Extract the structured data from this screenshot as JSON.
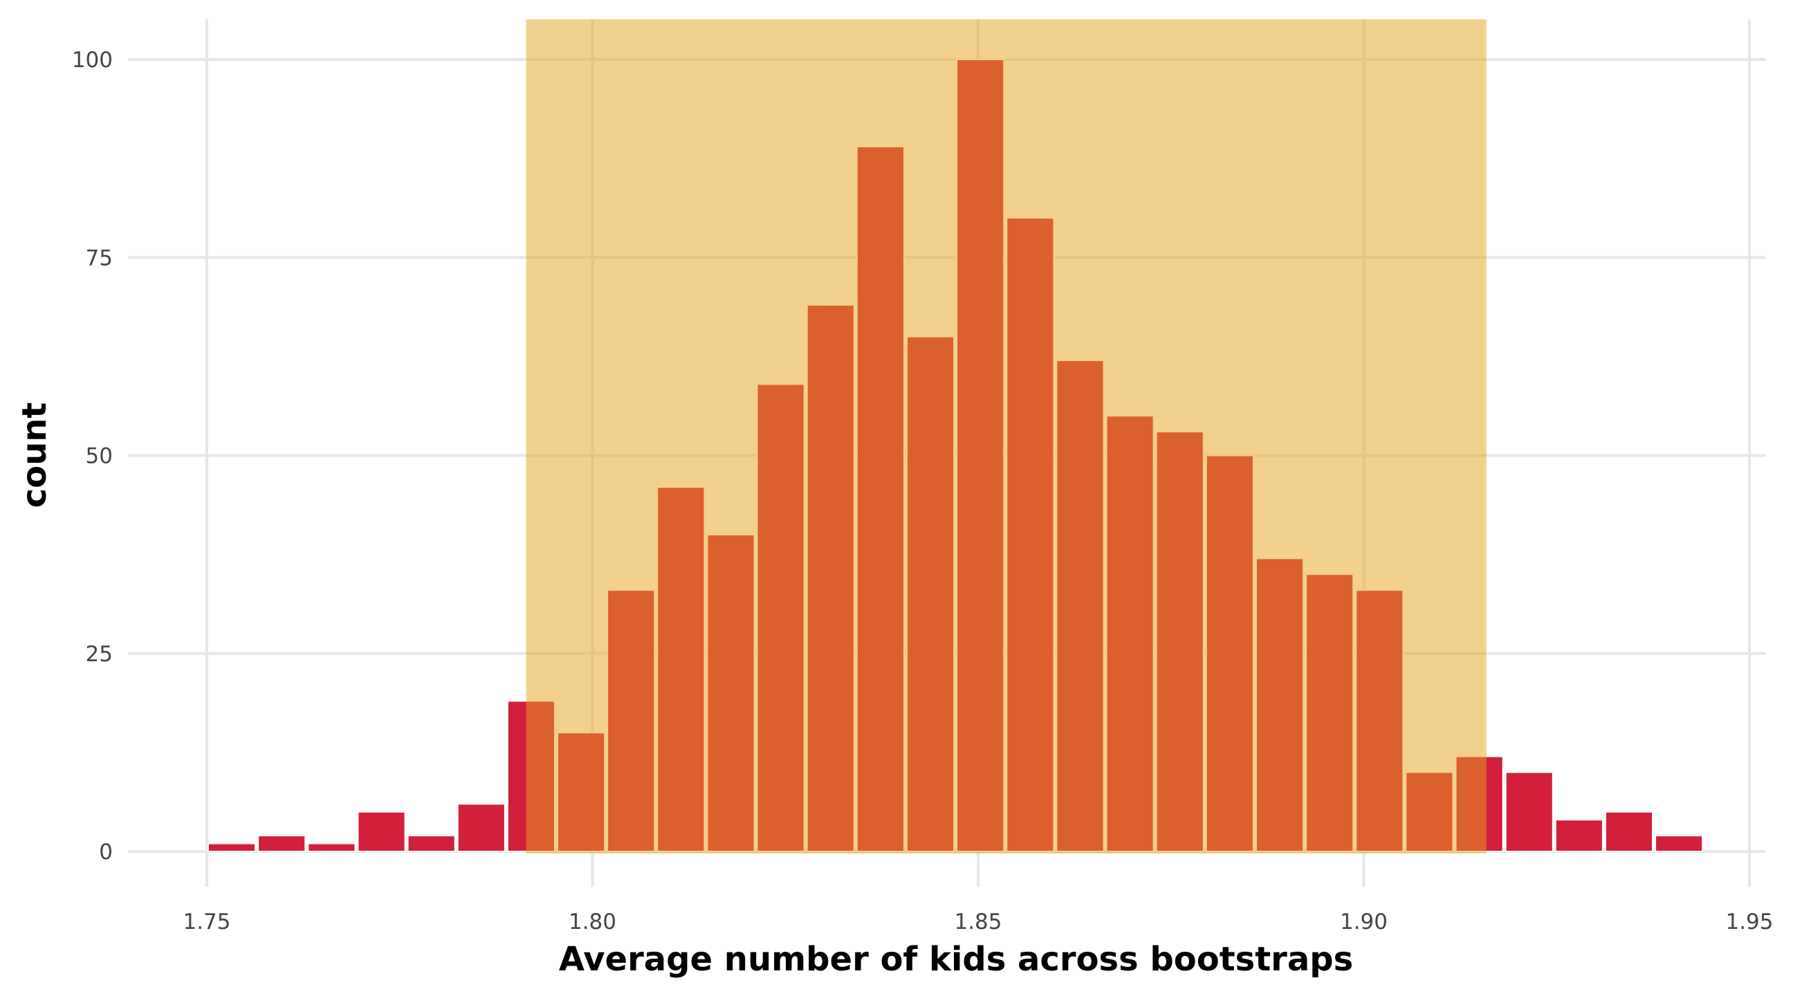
{
  "chart_data": {
    "type": "bar",
    "subtype": "histogram",
    "xlabel": "Average number of kids across bootstraps",
    "ylabel": "count",
    "xlim": [
      1.75,
      1.95
    ],
    "ylim": [
      0,
      100
    ],
    "x_ticks": [
      "1.75",
      "1.80",
      "1.85",
      "1.90",
      "1.95"
    ],
    "y_ticks": [
      "0",
      "25",
      "50",
      "75",
      "100"
    ],
    "bin_start": 1.75,
    "bin_width": 0.00647,
    "values": [
      1,
      2,
      1,
      5,
      2,
      6,
      19,
      15,
      33,
      46,
      40,
      59,
      69,
      89,
      65,
      100,
      80,
      62,
      55,
      53,
      50,
      37,
      35,
      33,
      10,
      12,
      10,
      4,
      5,
      2
    ],
    "highlight_interval": [
      1.7914,
      1.9159
    ],
    "grid": true,
    "colors": {
      "bar": "#D21F3C",
      "highlight": "rgba(229,161,29,0.5)",
      "grid": "#E6E6E6"
    }
  }
}
